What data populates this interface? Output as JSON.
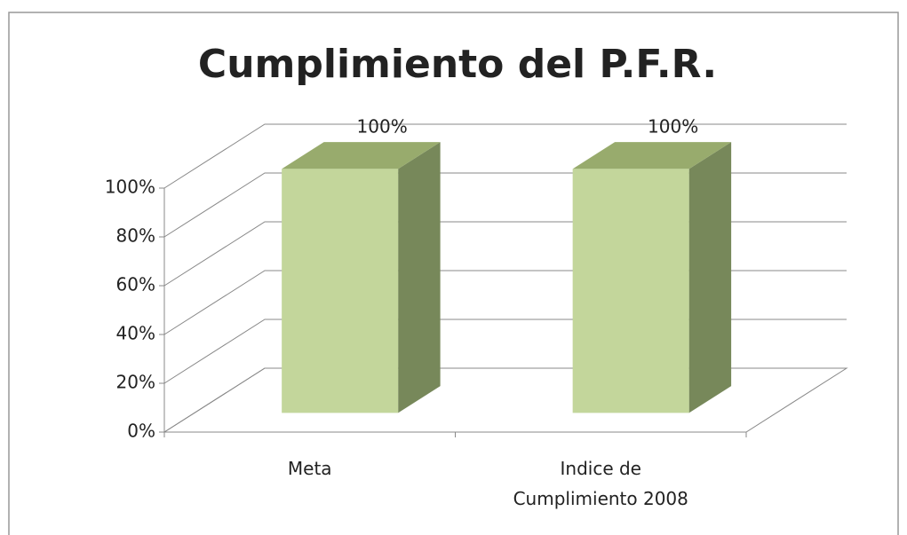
{
  "chart_data": {
    "type": "bar3d",
    "title": "Cumplimiento del P.F.R.",
    "categories": [
      "Meta",
      "Indice de Cumplimiento 2008"
    ],
    "values": [
      100,
      100
    ],
    "value_labels": [
      "100%",
      "100%"
    ],
    "colors": {
      "front": "#c3d69b",
      "top": "#98ab6d",
      "side": "#77885a"
    },
    "ylim": [
      0,
      100
    ],
    "yticks": [
      {
        "value": 0,
        "label": "0%"
      },
      {
        "value": 20,
        "label": "20%"
      },
      {
        "value": 40,
        "label": "40%"
      },
      {
        "value": 60,
        "label": "60%"
      },
      {
        "value": 80,
        "label": "80%"
      },
      {
        "value": 100,
        "label": "100%"
      }
    ],
    "grid": true
  }
}
